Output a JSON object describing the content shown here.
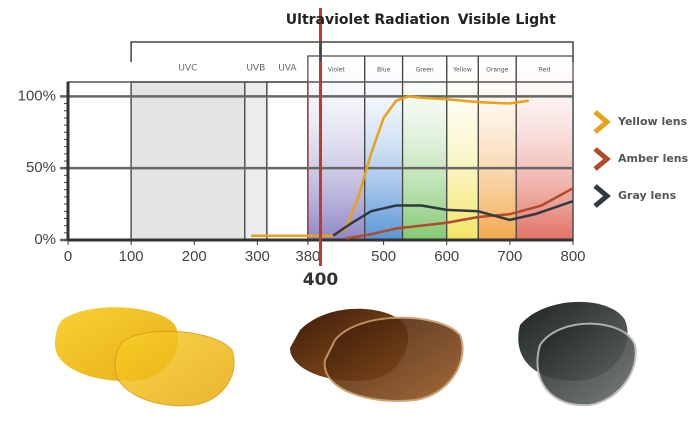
{
  "chart_data": {
    "type": "line",
    "headings": [
      {
        "label": "Ultraviolet Radiation",
        "at": 380
      },
      {
        "label": "Visible Light",
        "at": 600
      }
    ],
    "brackets": [
      {
        "from": 100,
        "to": 400
      },
      {
        "from": 400,
        "to": 800
      }
    ],
    "xlim": [
      0,
      800
    ],
    "xticks": [
      0,
      100,
      200,
      300,
      380,
      500,
      600,
      700,
      800
    ],
    "ylim": [
      0,
      110
    ],
    "yticks": [
      {
        "value": 0,
        "label": "0%"
      },
      {
        "value": 50,
        "label": "50%"
      },
      {
        "value": 100,
        "label": "100%"
      }
    ],
    "reference_line": 400,
    "reference_color": "#c0392b",
    "dashed_line": 380,
    "regions": [
      {
        "label": "UVC",
        "from": 100,
        "to": 280,
        "color": "#e4e4e4"
      },
      {
        "label": "UVB",
        "from": 280,
        "to": 315,
        "color": "#ececec"
      },
      {
        "label": "UVA",
        "from": 315,
        "to": 380,
        "color": "#ffffff"
      }
    ],
    "bands": [
      {
        "label": "Violet",
        "from": 380,
        "to": 470,
        "color": "#8a7fc4"
      },
      {
        "label": "Blue",
        "from": 470,
        "to": 530,
        "color": "#4f8fd6"
      },
      {
        "label": "Green",
        "from": 530,
        "to": 600,
        "color": "#7cc66a"
      },
      {
        "label": "Yellow",
        "from": 600,
        "to": 650,
        "color": "#f2e35c"
      },
      {
        "label": "Orange",
        "from": 650,
        "to": 710,
        "color": "#f2a240"
      },
      {
        "label": "Red",
        "from": 710,
        "to": 800,
        "color": "#e06a5a"
      }
    ],
    "series": [
      {
        "name": "Yellow lens",
        "color": "#e8a21a",
        "x": [
          290,
          380,
          420,
          440,
          460,
          480,
          500,
          520,
          540,
          560,
          600,
          650,
          700,
          730
        ],
        "values": [
          3,
          3,
          3,
          8,
          30,
          60,
          85,
          97,
          100,
          99,
          98,
          96,
          95,
          97
        ]
      },
      {
        "name": "Amber lens",
        "color": "#b04a2a",
        "x": [
          440,
          480,
          520,
          560,
          600,
          650,
          700,
          750,
          800
        ],
        "values": [
          1,
          4,
          8,
          10,
          12,
          16,
          18,
          24,
          36
        ]
      },
      {
        "name": "Gray lens",
        "color": "#2f3a40",
        "x": [
          420,
          450,
          480,
          520,
          560,
          600,
          650,
          700,
          740,
          800
        ],
        "values": [
          3,
          12,
          20,
          24,
          24,
          21,
          20,
          14,
          18,
          27
        ]
      }
    ]
  }
}
